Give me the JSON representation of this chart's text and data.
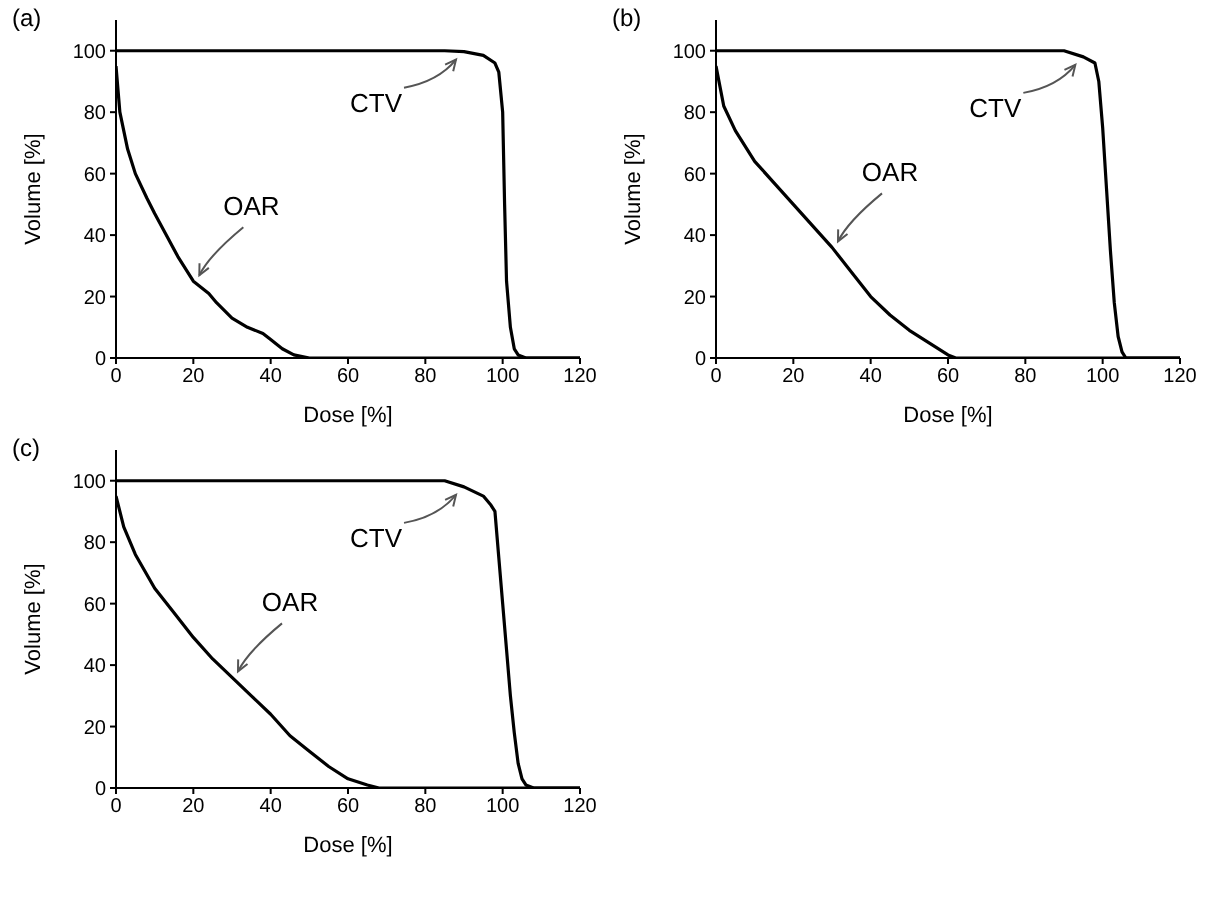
{
  "chart_data": [
    {
      "type": "line",
      "title": "(a)",
      "xlabel": "Dose [%]",
      "ylabel": "Volume [%]",
      "xlim": [
        0,
        120
      ],
      "xticks": [
        0,
        20,
        40,
        60,
        80,
        100,
        120
      ],
      "ylim": [
        0,
        110
      ],
      "yticks": [
        0,
        20,
        40,
        60,
        80,
        100
      ],
      "grid": false,
      "legend": false,
      "marker": "none",
      "line_style": "solid",
      "series": [
        {
          "name": "CTV",
          "color": "#000000",
          "x": [
            0,
            85,
            90,
            95,
            98,
            99,
            100,
            100.5,
            101,
            102,
            103,
            104,
            106,
            120
          ],
          "values": [
            100,
            100,
            99.7,
            98.5,
            96,
            93,
            80,
            50,
            25,
            10,
            3,
            1,
            0,
            0
          ]
        },
        {
          "name": "OAR",
          "color": "#000000",
          "x": [
            0,
            1,
            3,
            5,
            8,
            10,
            13,
            16,
            20,
            24,
            26,
            30,
            34,
            38,
            40,
            43,
            46,
            50,
            120
          ],
          "values": [
            95,
            80,
            68,
            60,
            52,
            47,
            40,
            33,
            25,
            21,
            18,
            13,
            10,
            8,
            6,
            3,
            1,
            0,
            0
          ]
        }
      ]
    },
    {
      "type": "line",
      "title": "(b)",
      "xlabel": "Dose [%]",
      "ylabel": "Volume [%]",
      "xlim": [
        0,
        120
      ],
      "xticks": [
        0,
        20,
        40,
        60,
        80,
        100,
        120
      ],
      "ylim": [
        0,
        110
      ],
      "yticks": [
        0,
        20,
        40,
        60,
        80,
        100
      ],
      "grid": false,
      "legend": false,
      "marker": "none",
      "line_style": "solid",
      "series": [
        {
          "name": "CTV",
          "color": "#000000",
          "x": [
            0,
            90,
            95,
            98,
            99,
            100,
            101,
            102,
            103,
            104,
            105,
            106,
            120
          ],
          "values": [
            100,
            100,
            98,
            96,
            90,
            75,
            55,
            35,
            18,
            7,
            2,
            0,
            0
          ]
        },
        {
          "name": "OAR",
          "color": "#000000",
          "x": [
            0,
            2,
            5,
            10,
            15,
            20,
            25,
            30,
            35,
            40,
            45,
            50,
            55,
            60,
            62,
            120
          ],
          "values": [
            95,
            82,
            74,
            64,
            57,
            50,
            43,
            36,
            28,
            20,
            14,
            9,
            5,
            1,
            0,
            0
          ]
        }
      ]
    },
    {
      "type": "line",
      "title": "(c)",
      "xlabel": "Dose [%]",
      "ylabel": "Volume [%]",
      "xlim": [
        0,
        120
      ],
      "xticks": [
        0,
        20,
        40,
        60,
        80,
        100,
        120
      ],
      "ylim": [
        0,
        110
      ],
      "yticks": [
        0,
        20,
        40,
        60,
        80,
        100
      ],
      "grid": false,
      "legend": false,
      "marker": "none",
      "line_style": "solid",
      "series": [
        {
          "name": "CTV",
          "color": "#000000",
          "x": [
            0,
            85,
            90,
            95,
            97,
            98,
            99,
            100,
            101,
            102,
            103,
            104,
            105,
            106,
            108,
            120
          ],
          "values": [
            100,
            100,
            98,
            95,
            92,
            90,
            75,
            60,
            45,
            30,
            18,
            8,
            3,
            1,
            0,
            0
          ]
        },
        {
          "name": "OAR",
          "color": "#000000",
          "x": [
            0,
            2,
            5,
            10,
            15,
            20,
            25,
            30,
            35,
            40,
            45,
            50,
            55,
            60,
            65,
            68,
            120
          ],
          "values": [
            95,
            85,
            76,
            65,
            57,
            49,
            42,
            36,
            30,
            24,
            17,
            12,
            7,
            3,
            1,
            0,
            0
          ]
        }
      ]
    }
  ]
}
